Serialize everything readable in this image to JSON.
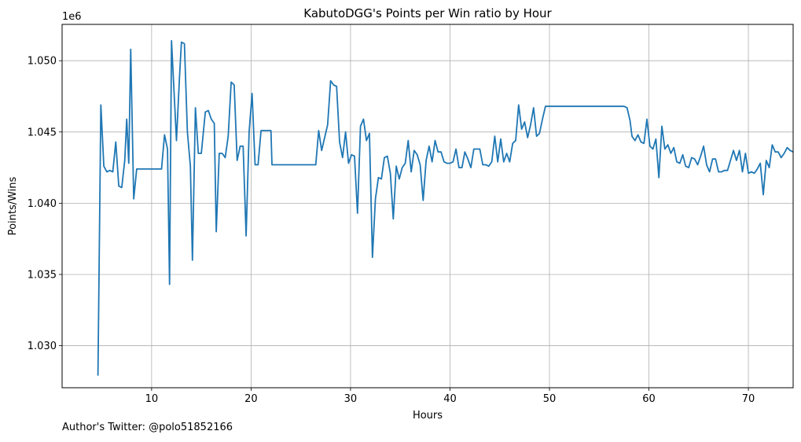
{
  "chart_data": {
    "type": "line",
    "title": "KabutoDGG's Points per Win ratio by Hour",
    "xlabel": "Hours",
    "ylabel": "Points/Wins",
    "y_offset_label": "1e6",
    "y_scale_factor": 1000000,
    "xlim": [
      1.0,
      74.5
    ],
    "ylim": [
      1.02705,
      1.05255
    ],
    "x_ticks": [
      10,
      20,
      30,
      40,
      50,
      60,
      70
    ],
    "x_tick_labels": [
      "10",
      "20",
      "30",
      "40",
      "50",
      "60",
      "70"
    ],
    "y_ticks": [
      1.03,
      1.035,
      1.04,
      1.045,
      1.05
    ],
    "y_tick_labels": [
      "1.030",
      "1.035",
      "1.040",
      "1.045",
      "1.050"
    ],
    "grid": true,
    "line_color": "#1f77b4",
    "series": [
      {
        "points": [
          [
            4.6,
            1.0279
          ],
          [
            4.9,
            1.0469
          ],
          [
            5.2,
            1.0426
          ],
          [
            5.5,
            1.0422
          ],
          [
            5.8,
            1.0423
          ],
          [
            6.1,
            1.0422
          ],
          [
            6.4,
            1.0443
          ],
          [
            6.7,
            1.0412
          ],
          [
            7.0,
            1.0411
          ],
          [
            7.3,
            1.043
          ],
          [
            7.5,
            1.0459
          ],
          [
            7.7,
            1.0428
          ],
          [
            7.9,
            1.0508
          ],
          [
            8.2,
            1.0403
          ],
          [
            8.5,
            1.0424
          ],
          [
            11.0,
            1.0424
          ],
          [
            11.3,
            1.0448
          ],
          [
            11.6,
            1.0438
          ],
          [
            11.8,
            1.0343
          ],
          [
            12.0,
            1.0514
          ],
          [
            12.5,
            1.0444
          ],
          [
            12.8,
            1.0488
          ],
          [
            13.0,
            1.0513
          ],
          [
            13.3,
            1.0512
          ],
          [
            13.6,
            1.045
          ],
          [
            13.9,
            1.0426
          ],
          [
            14.1,
            1.036
          ],
          [
            14.4,
            1.0467
          ],
          [
            14.7,
            1.0435
          ],
          [
            15.0,
            1.0435
          ],
          [
            15.4,
            1.0464
          ],
          [
            15.7,
            1.0465
          ],
          [
            16.0,
            1.0459
          ],
          [
            16.3,
            1.0456
          ],
          [
            16.5,
            1.038
          ],
          [
            16.8,
            1.0435
          ],
          [
            17.1,
            1.0435
          ],
          [
            17.4,
            1.0432
          ],
          [
            17.7,
            1.0447
          ],
          [
            18.0,
            1.0485
          ],
          [
            18.3,
            1.0483
          ],
          [
            18.6,
            1.043
          ],
          [
            18.9,
            1.044
          ],
          [
            19.2,
            1.044
          ],
          [
            19.5,
            1.0377
          ],
          [
            19.8,
            1.045
          ],
          [
            20.1,
            1.0477
          ],
          [
            20.4,
            1.0427
          ],
          [
            20.7,
            1.0427
          ],
          [
            21.0,
            1.0451
          ],
          [
            22.0,
            1.0451
          ],
          [
            22.1,
            1.0427
          ],
          [
            26.5,
            1.0427
          ],
          [
            26.8,
            1.0451
          ],
          [
            27.1,
            1.0437
          ],
          [
            27.4,
            1.0446
          ],
          [
            27.7,
            1.0455
          ],
          [
            28.0,
            1.0486
          ],
          [
            28.3,
            1.0483
          ],
          [
            28.6,
            1.0482
          ],
          [
            28.9,
            1.0443
          ],
          [
            29.2,
            1.0432
          ],
          [
            29.5,
            1.045
          ],
          [
            29.8,
            1.0428
          ],
          [
            30.1,
            1.0434
          ],
          [
            30.4,
            1.0433
          ],
          [
            30.7,
            1.0393
          ],
          [
            31.0,
            1.0454
          ],
          [
            31.3,
            1.0459
          ],
          [
            31.6,
            1.0444
          ],
          [
            31.9,
            1.0449
          ],
          [
            32.2,
            1.0362
          ],
          [
            32.5,
            1.0403
          ],
          [
            32.8,
            1.0418
          ],
          [
            33.1,
            1.0417
          ],
          [
            33.4,
            1.0432
          ],
          [
            33.7,
            1.0433
          ],
          [
            34.0,
            1.0421
          ],
          [
            34.3,
            1.0389
          ],
          [
            34.6,
            1.0426
          ],
          [
            34.9,
            1.0417
          ],
          [
            35.2,
            1.0425
          ],
          [
            35.5,
            1.0428
          ],
          [
            35.8,
            1.0444
          ],
          [
            36.1,
            1.0422
          ],
          [
            36.4,
            1.0437
          ],
          [
            36.7,
            1.0434
          ],
          [
            37.0,
            1.0427
          ],
          [
            37.3,
            1.0402
          ],
          [
            37.6,
            1.043
          ],
          [
            37.9,
            1.044
          ],
          [
            38.2,
            1.0429
          ],
          [
            38.5,
            1.0444
          ],
          [
            38.8,
            1.0436
          ],
          [
            39.1,
            1.0436
          ],
          [
            39.4,
            1.0429
          ],
          [
            39.7,
            1.0428
          ],
          [
            40.0,
            1.0428
          ],
          [
            40.3,
            1.0429
          ],
          [
            40.6,
            1.0438
          ],
          [
            40.9,
            1.0425
          ],
          [
            41.2,
            1.0425
          ],
          [
            41.5,
            1.0436
          ],
          [
            41.8,
            1.0431
          ],
          [
            42.1,
            1.0425
          ],
          [
            42.4,
            1.0438
          ],
          [
            42.7,
            1.0438
          ],
          [
            43.0,
            1.0438
          ],
          [
            43.3,
            1.0427
          ],
          [
            43.6,
            1.0427
          ],
          [
            43.9,
            1.0426
          ],
          [
            44.2,
            1.0429
          ],
          [
            44.5,
            1.0447
          ],
          [
            44.8,
            1.0429
          ],
          [
            45.1,
            1.0445
          ],
          [
            45.4,
            1.0429
          ],
          [
            45.7,
            1.0435
          ],
          [
            46.0,
            1.0429
          ],
          [
            46.3,
            1.0442
          ],
          [
            46.6,
            1.0444
          ],
          [
            46.9,
            1.0469
          ],
          [
            47.2,
            1.0452
          ],
          [
            47.5,
            1.0457
          ],
          [
            47.8,
            1.0446
          ],
          [
            48.1,
            1.0455
          ],
          [
            48.4,
            1.0467
          ],
          [
            48.7,
            1.0447
          ],
          [
            49.0,
            1.0449
          ],
          [
            49.3,
            1.0459
          ],
          [
            49.6,
            1.0468
          ],
          [
            57.5,
            1.0468
          ],
          [
            57.8,
            1.0467
          ],
          [
            58.1,
            1.0458
          ],
          [
            58.3,
            1.0447
          ],
          [
            58.6,
            1.0444
          ],
          [
            58.9,
            1.0448
          ],
          [
            59.2,
            1.0443
          ],
          [
            59.5,
            1.0442
          ],
          [
            59.8,
            1.0459
          ],
          [
            60.1,
            1.044
          ],
          [
            60.4,
            1.0438
          ],
          [
            60.7,
            1.0445
          ],
          [
            61.0,
            1.0418
          ],
          [
            61.3,
            1.0454
          ],
          [
            61.6,
            1.0438
          ],
          [
            61.9,
            1.0441
          ],
          [
            62.2,
            1.0435
          ],
          [
            62.5,
            1.0439
          ],
          [
            62.8,
            1.0429
          ],
          [
            63.1,
            1.0428
          ],
          [
            63.4,
            1.0434
          ],
          [
            63.7,
            1.0426
          ],
          [
            64.0,
            1.0425
          ],
          [
            64.3,
            1.0432
          ],
          [
            64.6,
            1.0431
          ],
          [
            64.9,
            1.0427
          ],
          [
            65.2,
            1.0433
          ],
          [
            65.5,
            1.044
          ],
          [
            65.8,
            1.0427
          ],
          [
            66.1,
            1.0422
          ],
          [
            66.4,
            1.0431
          ],
          [
            66.7,
            1.0431
          ],
          [
            67.0,
            1.0422
          ],
          [
            67.3,
            1.0422
          ],
          [
            67.6,
            1.0423
          ],
          [
            67.9,
            1.0423
          ],
          [
            68.2,
            1.043
          ],
          [
            68.5,
            1.0437
          ],
          [
            68.8,
            1.043
          ],
          [
            69.1,
            1.0437
          ],
          [
            69.4,
            1.0422
          ],
          [
            69.7,
            1.0435
          ],
          [
            70.0,
            1.0421
          ],
          [
            70.3,
            1.0422
          ],
          [
            70.6,
            1.0421
          ],
          [
            70.9,
            1.0424
          ],
          [
            71.2,
            1.0428
          ],
          [
            71.5,
            1.0406
          ],
          [
            71.8,
            1.043
          ],
          [
            72.1,
            1.0425
          ],
          [
            72.4,
            1.0441
          ],
          [
            72.7,
            1.0436
          ],
          [
            73.0,
            1.0436
          ],
          [
            73.3,
            1.0432
          ],
          [
            73.6,
            1.0435
          ],
          [
            73.9,
            1.0439
          ],
          [
            74.2,
            1.0437
          ],
          [
            74.5,
            1.0436
          ]
        ]
      }
    ]
  },
  "footer": {
    "text": "Author's Twitter: @polo51852166"
  }
}
